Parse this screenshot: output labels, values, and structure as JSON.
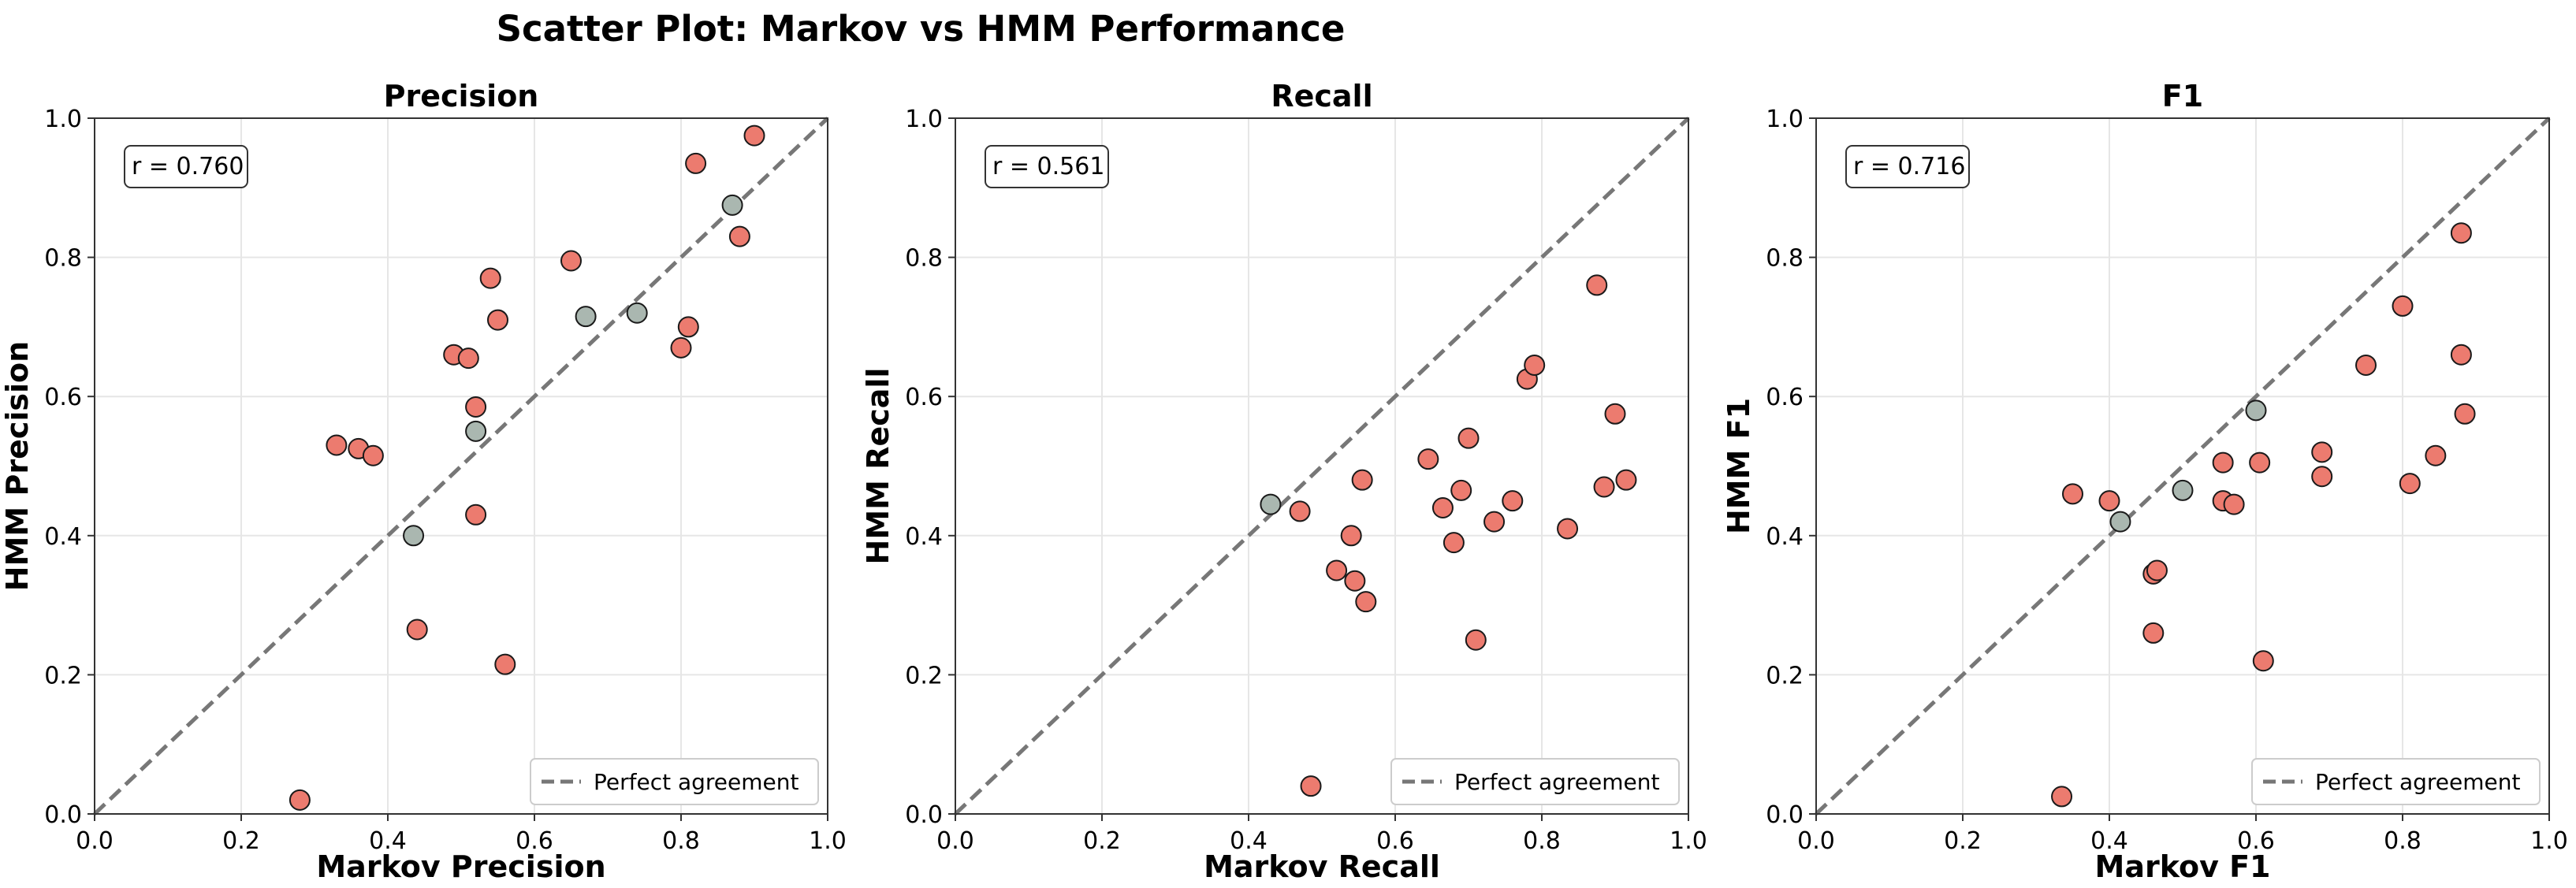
{
  "figure": {
    "title": "Scatter Plot: Markov vs HMM Performance"
  },
  "colors": {
    "point_default": "#ec7b6f",
    "point_gray": "#aab7b0",
    "point_edge": "#1a1a1a",
    "diagonal": "#777777",
    "grid": "#e6e6e6"
  },
  "legend": {
    "label": "Perfect agreement",
    "placement": "lower-right"
  },
  "chart_data": [
    {
      "type": "scatter",
      "title": "Precision",
      "xlabel": "Markov Precision",
      "ylabel": "HMM Precision",
      "xlim": [
        0,
        1
      ],
      "ylim": [
        0,
        1
      ],
      "xticks": [
        "0.0",
        "0.2",
        "0.4",
        "0.6",
        "0.8",
        "1.0"
      ],
      "yticks": [
        "0.0",
        "0.2",
        "0.4",
        "0.6",
        "0.8",
        "1.0"
      ],
      "grid": true,
      "annotation": "r = 0.760",
      "reference_line": "y = x",
      "points_highlighted": [
        [
          0.28,
          0.02
        ],
        [
          0.33,
          0.53
        ],
        [
          0.36,
          0.525
        ],
        [
          0.38,
          0.515
        ],
        [
          0.44,
          0.265
        ],
        [
          0.49,
          0.66
        ],
        [
          0.51,
          0.655
        ],
        [
          0.52,
          0.585
        ],
        [
          0.52,
          0.43
        ],
        [
          0.54,
          0.77
        ],
        [
          0.55,
          0.71
        ],
        [
          0.56,
          0.215
        ],
        [
          0.65,
          0.795
        ],
        [
          0.8,
          0.67
        ],
        [
          0.81,
          0.7
        ],
        [
          0.82,
          0.935
        ],
        [
          0.88,
          0.83
        ],
        [
          0.9,
          0.975
        ]
      ],
      "points_gray": [
        [
          0.435,
          0.4
        ],
        [
          0.52,
          0.55
        ],
        [
          0.67,
          0.715
        ],
        [
          0.74,
          0.72
        ],
        [
          0.87,
          0.875
        ]
      ]
    },
    {
      "type": "scatter",
      "title": "Recall",
      "xlabel": "Markov Recall",
      "ylabel": "HMM Recall",
      "xlim": [
        0,
        1
      ],
      "ylim": [
        0,
        1
      ],
      "xticks": [
        "0.0",
        "0.2",
        "0.4",
        "0.6",
        "0.8",
        "1.0"
      ],
      "yticks": [
        "0.0",
        "0.2",
        "0.4",
        "0.6",
        "0.8",
        "1.0"
      ],
      "grid": true,
      "annotation": "r = 0.561",
      "reference_line": "y = x",
      "points_highlighted": [
        [
          0.47,
          0.435
        ],
        [
          0.485,
          0.04
        ],
        [
          0.52,
          0.35
        ],
        [
          0.54,
          0.4
        ],
        [
          0.545,
          0.335
        ],
        [
          0.555,
          0.48
        ],
        [
          0.56,
          0.305
        ],
        [
          0.645,
          0.51
        ],
        [
          0.665,
          0.44
        ],
        [
          0.68,
          0.39
        ],
        [
          0.69,
          0.465
        ],
        [
          0.7,
          0.54
        ],
        [
          0.71,
          0.25
        ],
        [
          0.735,
          0.42
        ],
        [
          0.76,
          0.45
        ],
        [
          0.78,
          0.625
        ],
        [
          0.79,
          0.645
        ],
        [
          0.835,
          0.41
        ],
        [
          0.875,
          0.76
        ],
        [
          0.885,
          0.47
        ],
        [
          0.9,
          0.575
        ],
        [
          0.915,
          0.48
        ]
      ],
      "points_gray": [
        [
          0.43,
          0.445
        ]
      ]
    },
    {
      "type": "scatter",
      "title": "F1",
      "xlabel": "Markov F1",
      "ylabel": "HMM F1",
      "xlim": [
        0,
        1
      ],
      "ylim": [
        0,
        1
      ],
      "xticks": [
        "0.0",
        "0.2",
        "0.4",
        "0.6",
        "0.8",
        "1.0"
      ],
      "yticks": [
        "0.0",
        "0.2",
        "0.4",
        "0.6",
        "0.8",
        "1.0"
      ],
      "grid": true,
      "annotation": "r = 0.716",
      "reference_line": "y = x",
      "points_highlighted": [
        [
          0.335,
          0.025
        ],
        [
          0.35,
          0.46
        ],
        [
          0.4,
          0.45
        ],
        [
          0.46,
          0.345
        ],
        [
          0.46,
          0.26
        ],
        [
          0.465,
          0.35
        ],
        [
          0.555,
          0.45
        ],
        [
          0.555,
          0.505
        ],
        [
          0.57,
          0.445
        ],
        [
          0.605,
          0.505
        ],
        [
          0.61,
          0.22
        ],
        [
          0.69,
          0.485
        ],
        [
          0.69,
          0.52
        ],
        [
          0.75,
          0.645
        ],
        [
          0.8,
          0.73
        ],
        [
          0.81,
          0.475
        ],
        [
          0.845,
          0.515
        ],
        [
          0.88,
          0.835
        ],
        [
          0.88,
          0.66
        ],
        [
          0.885,
          0.575
        ]
      ],
      "points_gray": [
        [
          0.415,
          0.42
        ],
        [
          0.5,
          0.465
        ],
        [
          0.6,
          0.58
        ]
      ]
    }
  ]
}
